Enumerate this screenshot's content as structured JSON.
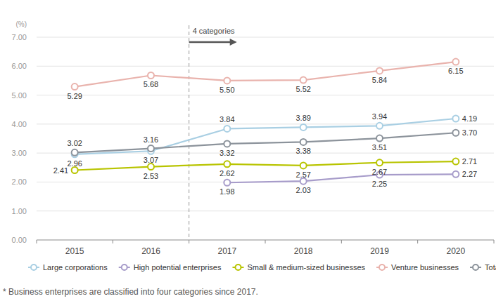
{
  "chart_data": {
    "type": "line",
    "y_label": "(%)",
    "categories": [
      "2015",
      "2016",
      "2017",
      "2018",
      "2019",
      "2020"
    ],
    "series": [
      {
        "name": "Large corporations",
        "color": "#a9cfe3",
        "marker": "circle",
        "values": [
          2.96,
          3.07,
          3.84,
          3.89,
          3.94,
          4.19
        ],
        "value_labels": [
          "2.96",
          "3.07",
          "3.84",
          "3.89",
          "3.94",
          "4.19"
        ]
      },
      {
        "name": "High potential enterprises",
        "color": "#a79cca",
        "marker": "circle",
        "values": [
          null,
          null,
          1.98,
          2.03,
          2.25,
          2.27
        ],
        "value_labels": [
          null,
          null,
          "1.98",
          "2.03",
          "2.25",
          "2.27"
        ]
      },
      {
        "name": "Small & medium-sized businesses",
        "color": "#b8c400",
        "marker": "circle",
        "values": [
          2.41,
          2.53,
          2.62,
          2.57,
          2.67,
          2.71
        ],
        "value_labels": [
          "2.41",
          "2.53",
          "2.62",
          "2.57",
          "2.67",
          "2.71"
        ]
      },
      {
        "name": "Venture businesses",
        "color": "#e9b3ad",
        "marker": "circle",
        "values": [
          5.29,
          5.68,
          5.5,
          5.52,
          5.84,
          6.15
        ],
        "value_labels": [
          "5.29",
          "5.68",
          "5.50",
          "5.52",
          "5.84",
          "6.15"
        ]
      },
      {
        "name": "Total",
        "color": "#8c939b",
        "marker": "circle",
        "values": [
          3.02,
          3.16,
          3.32,
          3.38,
          3.51,
          3.7
        ],
        "value_labels": [
          "3.02",
          "3.16",
          "3.32",
          "3.38",
          "3.51",
          "3.70"
        ]
      }
    ],
    "ylim": [
      0,
      7
    ],
    "yticks": [
      {
        "value": 0,
        "label": "0.00"
      },
      {
        "value": 1,
        "label": "1.00"
      },
      {
        "value": 2,
        "label": "2.00"
      },
      {
        "value": 3,
        "label": "3.00"
      },
      {
        "value": 4,
        "label": "4.00"
      },
      {
        "value": 5,
        "label": "5.00"
      },
      {
        "value": 6,
        "label": "6.00"
      },
      {
        "value": 7,
        "label": "7.00"
      }
    ],
    "grid": true,
    "data_labels": true,
    "legend": "bottom",
    "annotations": [
      "4 categories"
    ],
    "footnote": "* Business enterprises are classified into four categories since 2017."
  }
}
